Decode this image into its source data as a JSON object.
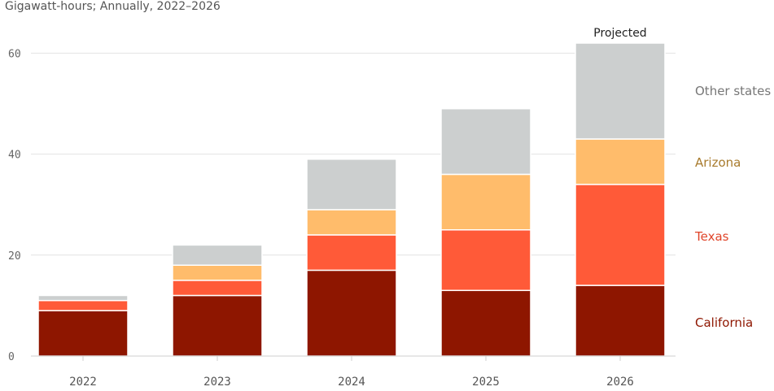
{
  "chart_data": {
    "type": "bar",
    "stacked": true,
    "subtitle": "Gigawatt-hours; Annually, 2022–2026",
    "categories": [
      "2022",
      "2023",
      "2024",
      "2025",
      "2026"
    ],
    "series": [
      {
        "name": "California",
        "color": "#8e1600",
        "values": [
          9,
          12,
          17,
          13,
          14
        ]
      },
      {
        "name": "Texas",
        "color": "#ff5a38",
        "values": [
          2,
          3,
          7,
          12,
          20
        ]
      },
      {
        "name": "Arizona",
        "color": "#ffbc6b",
        "values": [
          0,
          3,
          5,
          11,
          9
        ]
      },
      {
        "name": "Other states",
        "color": "#cccfcf",
        "values": [
          1,
          4,
          10,
          13,
          19
        ]
      }
    ],
    "legend_colors": {
      "California": "#8e1600",
      "Texas": "#e0452a",
      "Arizona": "#a87b2d",
      "Other states": "#777777"
    },
    "ylim": [
      0,
      62
    ],
    "yticks": [
      0,
      20,
      40,
      60
    ],
    "grid": true,
    "legend": "right",
    "annotations": [
      {
        "text": "Projected",
        "category": "2026"
      }
    ]
  }
}
